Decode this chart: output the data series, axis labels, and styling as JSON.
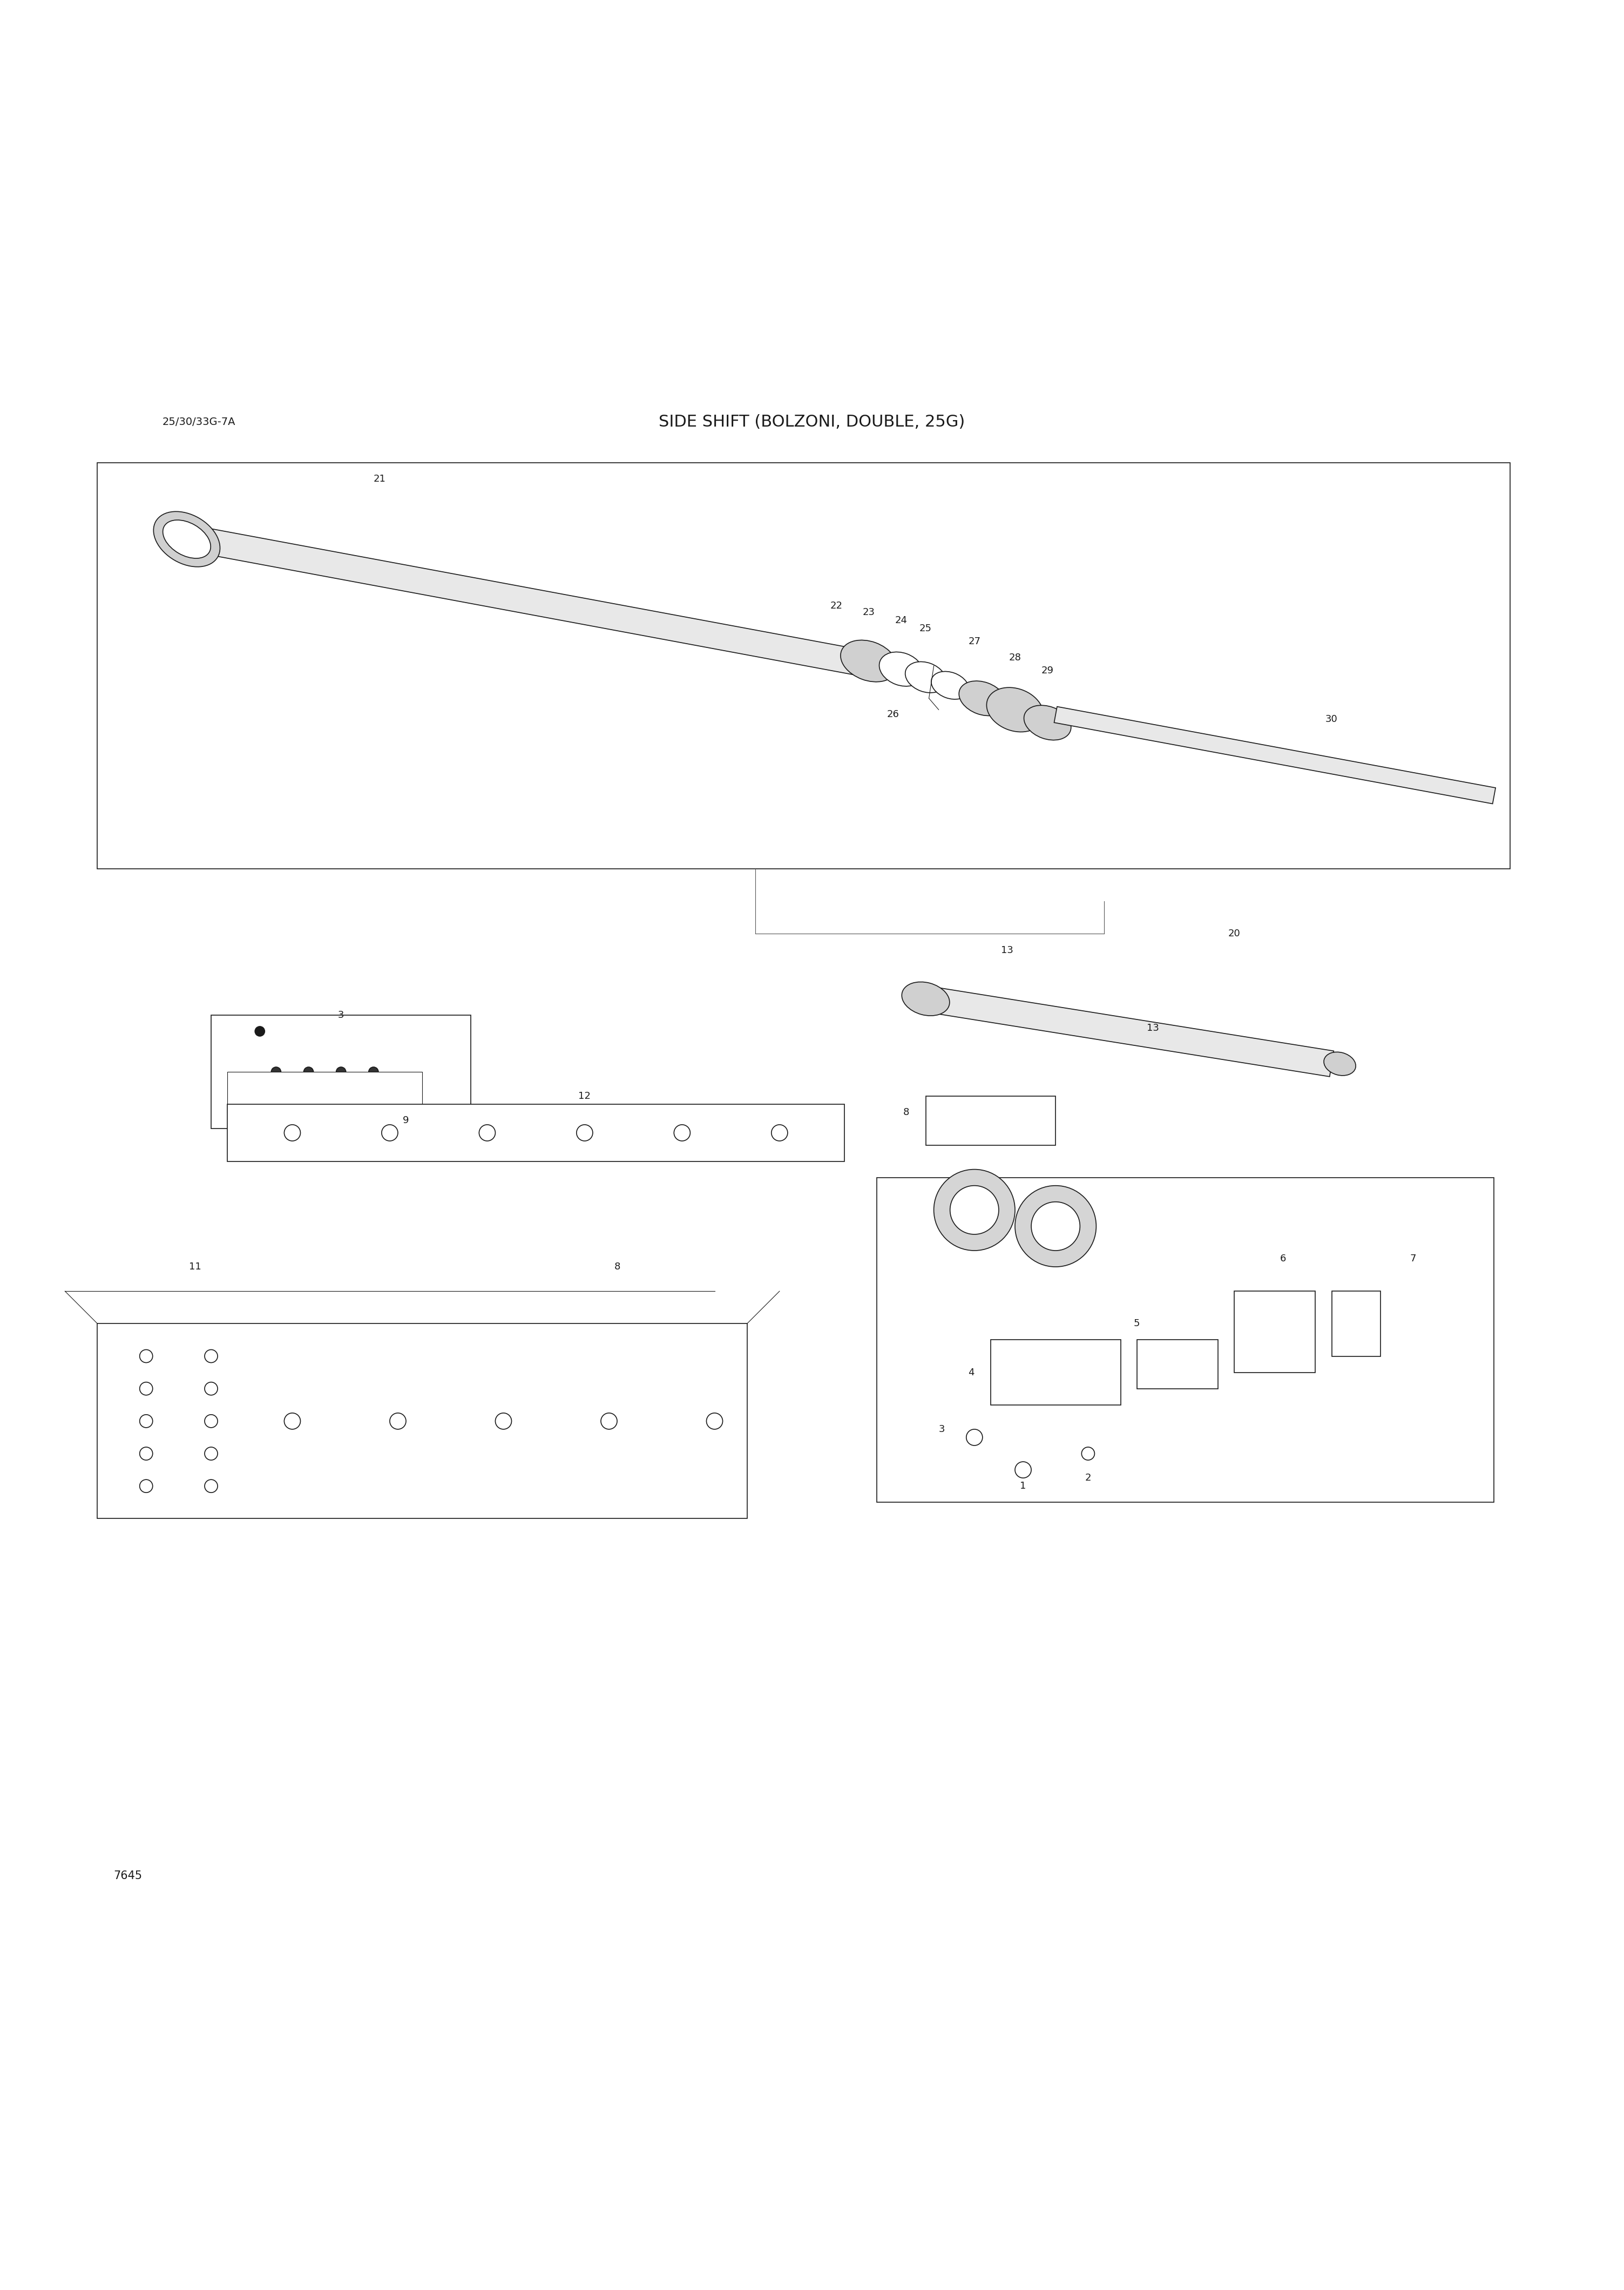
{
  "title": "SIDE SHIFT (BOLZONI, DOUBLE, 25G)",
  "subtitle": "25/30/33G-7A",
  "footer": "7645",
  "bg_color": "#ffffff",
  "line_color": "#1a1a1a",
  "text_color": "#1a1a1a",
  "title_fontsize": 22,
  "subtitle_fontsize": 14,
  "label_fontsize": 13,
  "footer_fontsize": 15,
  "fig_width": 30.08,
  "fig_height": 42.41
}
